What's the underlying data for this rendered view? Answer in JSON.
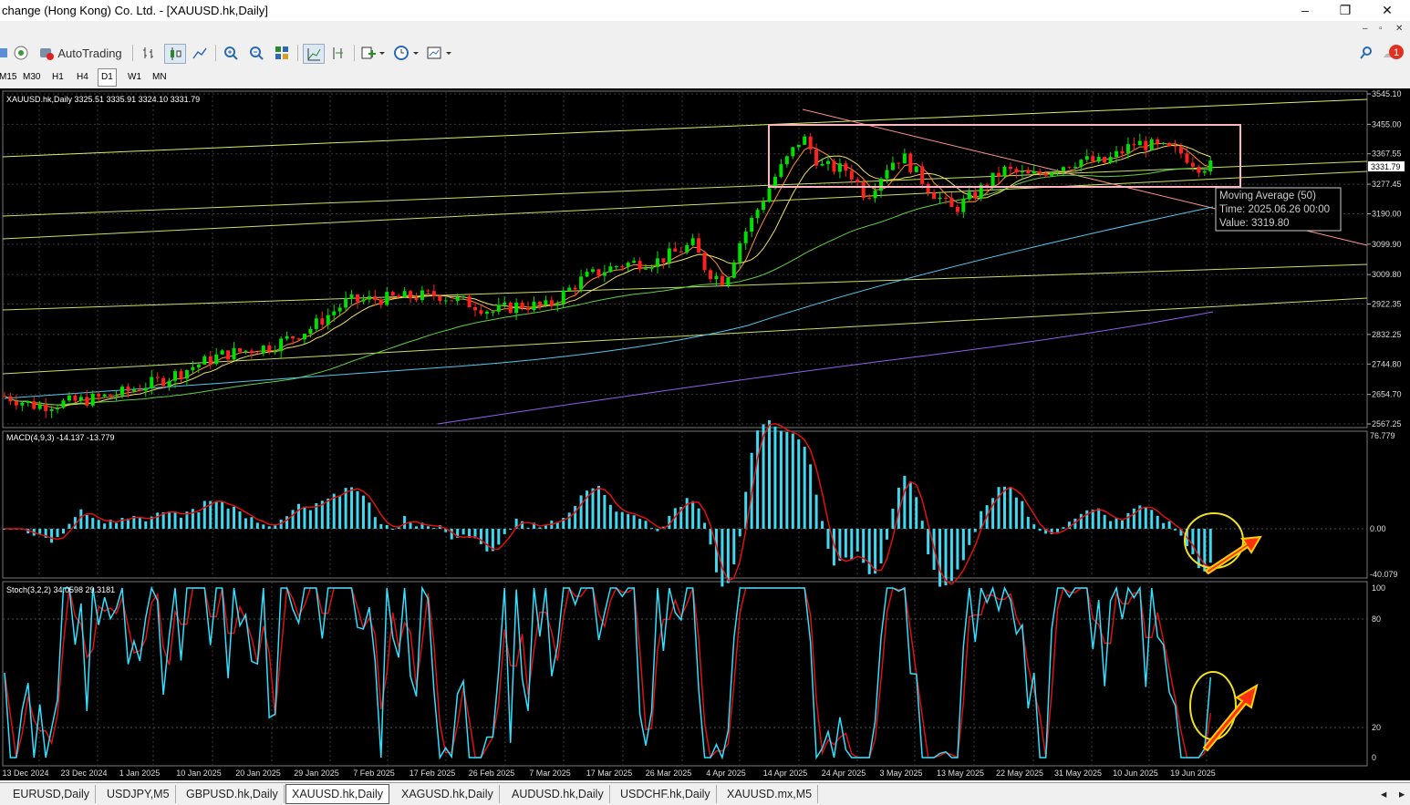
{
  "window": {
    "title": "change (Hong Kong) Co. Ltd. - [XAUUSD.hk,Daily]",
    "controls": [
      "–",
      "❐",
      "✕"
    ],
    "sub_controls": [
      "–",
      "▫",
      "✕"
    ]
  },
  "toolbar": {
    "autotrading_label": "AutoTrading",
    "notification_count": "1"
  },
  "timeframes": [
    "M15",
    "M30",
    "H1",
    "H4",
    "D1",
    "W1",
    "MN"
  ],
  "active_timeframe": "D1",
  "chart": {
    "header": "XAUUSD.hk,Daily  3325.51 3335.91 3324.10 3331.79",
    "price_label": "3331.79",
    "price_ticks": [
      "3545.10",
      "3455.00",
      "3367.55",
      "3277.45",
      "3190.00",
      "3099.90",
      "3009.80",
      "2922.35",
      "2832.25",
      "2744.80",
      "2654.70",
      "2567.25"
    ],
    "date_ticks": [
      "13 Dec 2024",
      "23 Dec 2024",
      "1 Jan 2025",
      "10 Jan 2025",
      "20 Jan 2025",
      "29 Jan 2025",
      "7 Feb 2025",
      "17 Feb 2025",
      "26 Feb 2025",
      "7 Mar 2025",
      "17 Mar 2025",
      "26 Mar 2025",
      "4 Apr 2025",
      "14 Apr 2025",
      "24 Apr 2025",
      "3 May 2025",
      "13 May 2025",
      "22 May 2025",
      "31 May 2025",
      "10 Jun 2025",
      "19 Jun 2025"
    ],
    "tooltip": {
      "line1": "Moving Average (50)",
      "line2": "Time: 2025.06.26 00:00",
      "line3": "Value: 3319.80"
    }
  },
  "macd": {
    "header": "MACD(4,9,3) -14.137 -13.779",
    "ticks": [
      "76.779",
      "0.00",
      "-40.079"
    ]
  },
  "stoch": {
    "header": "Stoch(3,2,2) 34.0598 29.3181",
    "ticks": [
      "100",
      "80",
      "20",
      "0"
    ]
  },
  "tabs": [
    "EURUSD,Daily",
    "USDJPY,M5",
    "GBPUSD.hk,Daily",
    "XAUUSD.hk,Daily",
    "XAGUSD.hk,Daily",
    "AUDUSD.hk,Daily",
    "USDCHF.hk,Daily",
    "XAUUSD.mx,M5"
  ],
  "active_tab": "XAUUSD.hk,Daily",
  "colors": {
    "bull": "#00e000",
    "bear": "#ff2020",
    "macd_hist": "#40d8f0",
    "signal": "#e01010",
    "stoch_main": "#30e0ff",
    "grid": "#3a3a3a"
  }
}
